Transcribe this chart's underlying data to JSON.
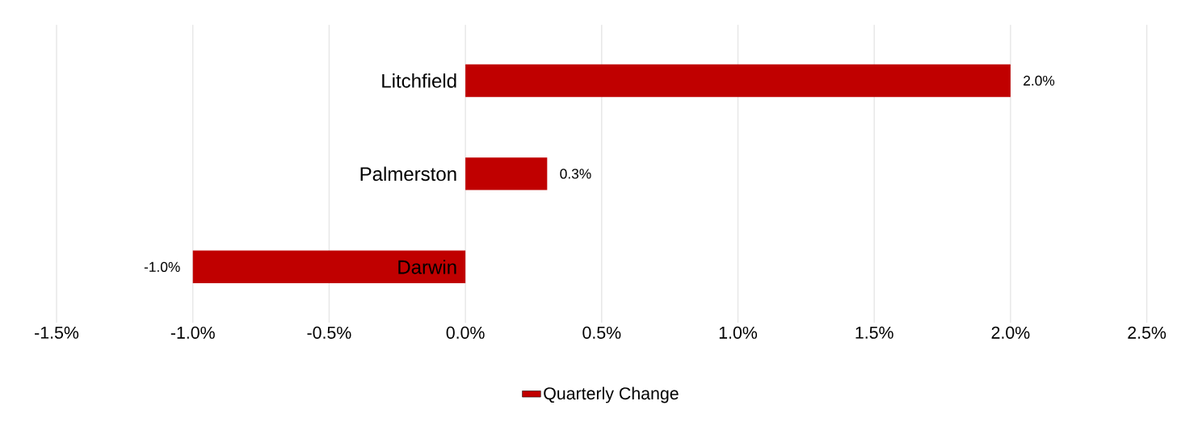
{
  "chart_data": {
    "type": "bar",
    "orientation": "horizontal",
    "categories": [
      "Litchfield",
      "Palmerston",
      "Darwin"
    ],
    "series": [
      {
        "name": "Quarterly Change",
        "color": "#c00000",
        "values": [
          2.0,
          0.3,
          -1.0
        ],
        "value_labels": [
          "2.0%",
          "0.3%",
          "-1.0%"
        ]
      }
    ],
    "xlim": [
      -1.5,
      2.5
    ],
    "xticks": [
      {
        "value": -1.5,
        "label": "-1.5%"
      },
      {
        "value": -1.0,
        "label": "-1.0%"
      },
      {
        "value": -0.5,
        "label": "-0.5%"
      },
      {
        "value": 0.0,
        "label": "0.0%"
      },
      {
        "value": 0.5,
        "label": "0.5%"
      },
      {
        "value": 1.0,
        "label": "1.0%"
      },
      {
        "value": 1.5,
        "label": "1.5%"
      },
      {
        "value": 2.0,
        "label": "2.0%"
      },
      {
        "value": 2.5,
        "label": "2.5%"
      }
    ],
    "grid": "x",
    "legend": "bottom"
  }
}
